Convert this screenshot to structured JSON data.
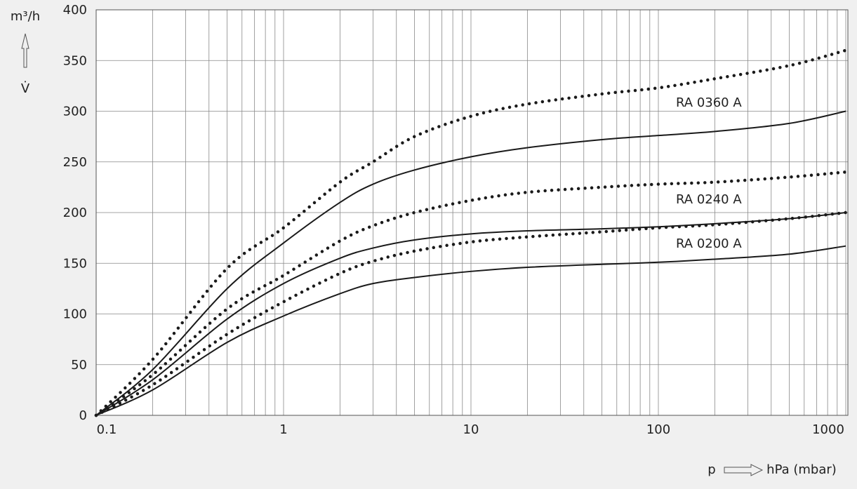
{
  "chart_data": {
    "type": "line",
    "y_label": "m³/h",
    "y_symbol": "V̇",
    "x_symbol": "p",
    "x_label": "hPa (mbar)",
    "annotations": [
      "RA 0360 A",
      "RA 0240 A",
      "RA 0200 A"
    ],
    "x": [
      0.1,
      0.2,
      0.5,
      1,
      2,
      3,
      5,
      10,
      20,
      50,
      100,
      200,
      500,
      1000
    ],
    "series": [
      {
        "style": "dotted",
        "color": "#1a1a1a",
        "values": [
          0,
          55,
          145,
          185,
          230,
          250,
          275,
          295,
          307,
          317,
          323,
          332,
          345,
          360
        ]
      },
      {
        "style": "solid",
        "color": "#1a1a1a",
        "values": [
          0,
          45,
          125,
          170,
          210,
          228,
          242,
          255,
          264,
          272,
          276,
          280,
          288,
          300
        ]
      },
      {
        "style": "dotted",
        "color": "#1a1a1a",
        "values": [
          0,
          40,
          105,
          138,
          172,
          187,
          200,
          212,
          220,
          225,
          228,
          230,
          235,
          240
        ]
      },
      {
        "style": "solid",
        "color": "#1a1a1a",
        "values": [
          0,
          35,
          95,
          130,
          155,
          165,
          173,
          179,
          182,
          184,
          186,
          189,
          194,
          200
        ]
      },
      {
        "style": "dotted",
        "color": "#1a1a1a",
        "values": [
          0,
          30,
          80,
          112,
          140,
          152,
          162,
          171,
          176,
          181,
          185,
          188,
          194,
          200
        ]
      },
      {
        "style": "solid",
        "color": "#1a1a1a",
        "values": [
          0,
          25,
          72,
          98,
          120,
          130,
          136,
          142,
          146,
          149,
          151,
          154,
          159,
          167
        ]
      }
    ],
    "xscale": "log",
    "xlim": [
      0.1,
      1000
    ],
    "xticks": [
      0.1,
      1,
      10,
      100,
      1000
    ],
    "xminor": [
      0.2,
      0.3,
      0.4,
      0.5,
      0.6,
      0.7,
      0.8,
      0.9,
      2,
      3,
      4,
      5,
      6,
      7,
      8,
      9,
      20,
      30,
      40,
      50,
      60,
      70,
      80,
      90,
      200,
      300,
      400,
      500,
      600,
      700,
      800,
      900
    ],
    "ylim": [
      0,
      400
    ],
    "yticks": [
      0,
      50,
      100,
      150,
      200,
      250,
      300,
      350,
      400
    ],
    "grid": true
  }
}
